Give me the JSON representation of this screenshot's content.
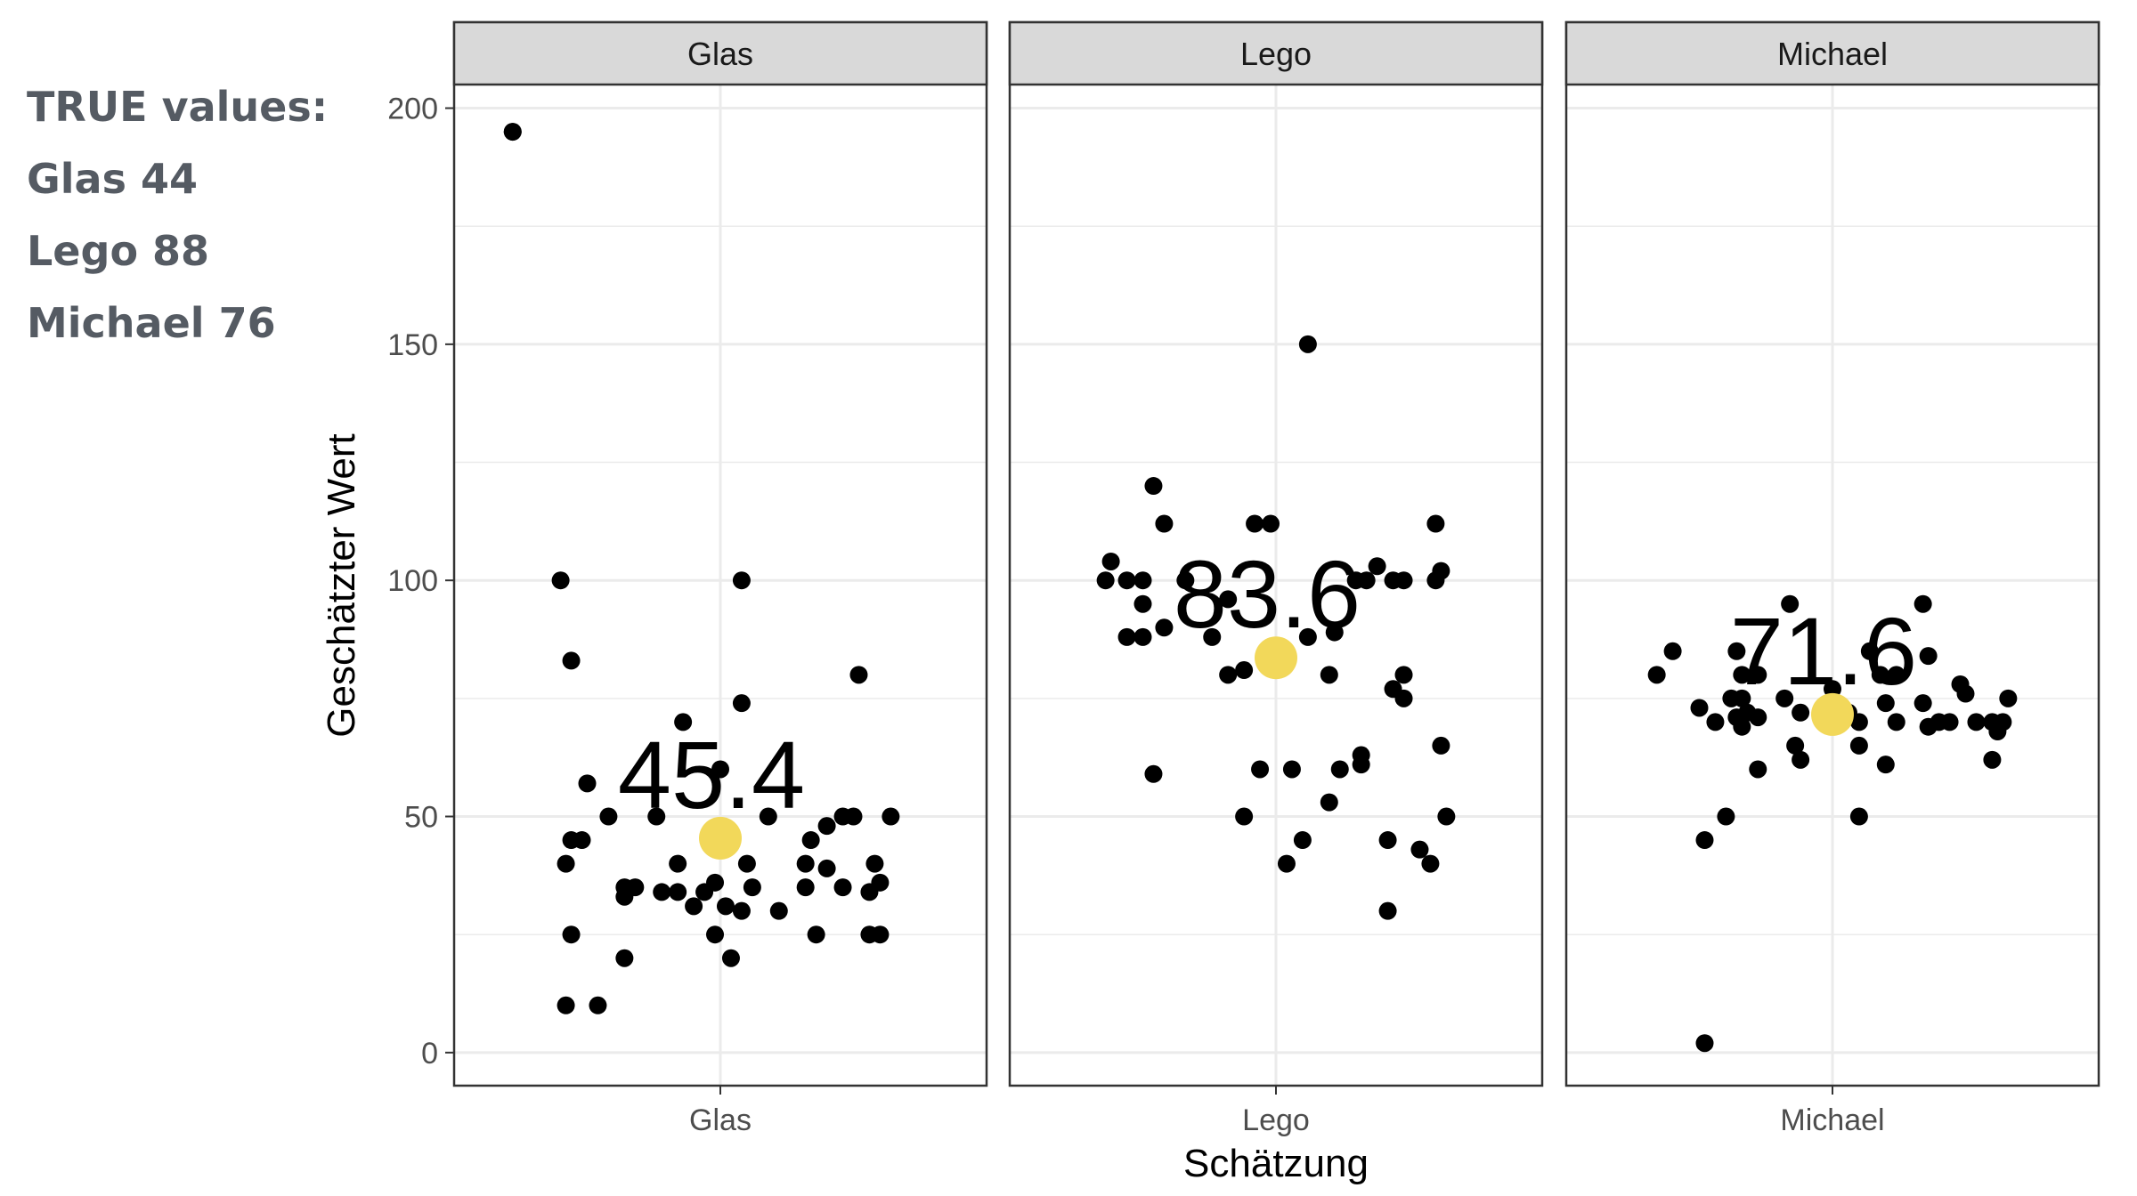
{
  "annotation": {
    "heading": "TRUE values:",
    "lines": [
      "Glas 44",
      "Lego 88",
      "Michael 76"
    ]
  },
  "chart_data": {
    "type": "scatter",
    "xlabel": "Schätzung",
    "ylabel": "Geschätzter Wert",
    "ylim": [
      -7,
      205
    ],
    "yticks": [
      0,
      50,
      100,
      150,
      200
    ],
    "grid": true,
    "colors": {
      "points": "#000000",
      "mean": "#f2d85a",
      "strip": "#d9d9d9",
      "grid": "#ebebeb"
    },
    "panels": [
      {
        "name": "Glas",
        "tick_label": "Glas",
        "mean": 45.4,
        "mean_label": "45.4",
        "points": [
          {
            "x": -0.39,
            "y": 195
          },
          {
            "x": -0.39,
            "y": 195
          },
          {
            "x": -0.3,
            "y": 100
          },
          {
            "x": 0.04,
            "y": 100
          },
          {
            "x": -0.28,
            "y": 83
          },
          {
            "x": 0.26,
            "y": 80
          },
          {
            "x": 0.04,
            "y": 74
          },
          {
            "x": -0.07,
            "y": 70
          },
          {
            "x": 0.0,
            "y": 60
          },
          {
            "x": -0.25,
            "y": 57
          },
          {
            "x": -0.21,
            "y": 50
          },
          {
            "x": -0.12,
            "y": 50
          },
          {
            "x": 0.09,
            "y": 50
          },
          {
            "x": 0.23,
            "y": 50
          },
          {
            "x": 0.25,
            "y": 50
          },
          {
            "x": 0.32,
            "y": 50
          },
          {
            "x": 0.2,
            "y": 48
          },
          {
            "x": -0.28,
            "y": 45
          },
          {
            "x": -0.26,
            "y": 45
          },
          {
            "x": 0.17,
            "y": 45
          },
          {
            "x": -0.29,
            "y": 40
          },
          {
            "x": -0.08,
            "y": 40
          },
          {
            "x": 0.05,
            "y": 40
          },
          {
            "x": 0.16,
            "y": 40
          },
          {
            "x": 0.2,
            "y": 39
          },
          {
            "x": 0.29,
            "y": 40
          },
          {
            "x": -0.18,
            "y": 35
          },
          {
            "x": -0.16,
            "y": 35
          },
          {
            "x": -0.11,
            "y": 34
          },
          {
            "x": -0.08,
            "y": 34
          },
          {
            "x": -0.03,
            "y": 34
          },
          {
            "x": -0.05,
            "y": 31
          },
          {
            "x": -0.01,
            "y": 36
          },
          {
            "x": 0.06,
            "y": 35
          },
          {
            "x": 0.16,
            "y": 35
          },
          {
            "x": 0.23,
            "y": 35
          },
          {
            "x": 0.28,
            "y": 34
          },
          {
            "x": 0.3,
            "y": 36
          },
          {
            "x": -0.18,
            "y": 33
          },
          {
            "x": 0.01,
            "y": 31
          },
          {
            "x": 0.04,
            "y": 30
          },
          {
            "x": 0.11,
            "y": 30
          },
          {
            "x": -0.28,
            "y": 25
          },
          {
            "x": -0.01,
            "y": 25
          },
          {
            "x": 0.18,
            "y": 25
          },
          {
            "x": 0.28,
            "y": 25
          },
          {
            "x": 0.3,
            "y": 25
          },
          {
            "x": -0.18,
            "y": 20
          },
          {
            "x": 0.02,
            "y": 20
          },
          {
            "x": -0.29,
            "y": 10
          },
          {
            "x": -0.23,
            "y": 10
          }
        ]
      },
      {
        "name": "Lego",
        "tick_label": "Lego",
        "mean": 83.6,
        "mean_label": "83.6",
        "points": [
          {
            "x": 0.06,
            "y": 150
          },
          {
            "x": -0.23,
            "y": 120
          },
          {
            "x": -0.21,
            "y": 112
          },
          {
            "x": -0.04,
            "y": 112
          },
          {
            "x": -0.01,
            "y": 112
          },
          {
            "x": 0.3,
            "y": 112
          },
          {
            "x": -0.31,
            "y": 104
          },
          {
            "x": 0.19,
            "y": 103
          },
          {
            "x": 0.31,
            "y": 102
          },
          {
            "x": -0.32,
            "y": 100
          },
          {
            "x": -0.28,
            "y": 100
          },
          {
            "x": -0.25,
            "y": 100
          },
          {
            "x": -0.17,
            "y": 100
          },
          {
            "x": 0.15,
            "y": 100
          },
          {
            "x": 0.17,
            "y": 100
          },
          {
            "x": 0.22,
            "y": 100
          },
          {
            "x": 0.24,
            "y": 100
          },
          {
            "x": 0.3,
            "y": 100
          },
          {
            "x": -0.09,
            "y": 96
          },
          {
            "x": -0.25,
            "y": 95
          },
          {
            "x": -0.21,
            "y": 90
          },
          {
            "x": -0.28,
            "y": 88
          },
          {
            "x": -0.25,
            "y": 88
          },
          {
            "x": -0.12,
            "y": 88
          },
          {
            "x": 0.06,
            "y": 88
          },
          {
            "x": 0.11,
            "y": 89
          },
          {
            "x": -0.09,
            "y": 80
          },
          {
            "x": -0.06,
            "y": 81
          },
          {
            "x": 0.1,
            "y": 80
          },
          {
            "x": 0.24,
            "y": 80
          },
          {
            "x": 0.22,
            "y": 77
          },
          {
            "x": 0.24,
            "y": 75
          },
          {
            "x": 0.31,
            "y": 65
          },
          {
            "x": 0.16,
            "y": 63
          },
          {
            "x": 0.16,
            "y": 61
          },
          {
            "x": -0.23,
            "y": 59
          },
          {
            "x": -0.03,
            "y": 60
          },
          {
            "x": 0.03,
            "y": 60
          },
          {
            "x": 0.12,
            "y": 60
          },
          {
            "x": 0.1,
            "y": 53
          },
          {
            "x": -0.06,
            "y": 50
          },
          {
            "x": 0.32,
            "y": 50
          },
          {
            "x": 0.05,
            "y": 45
          },
          {
            "x": 0.21,
            "y": 45
          },
          {
            "x": 0.27,
            "y": 43
          },
          {
            "x": 0.02,
            "y": 40
          },
          {
            "x": 0.29,
            "y": 40
          },
          {
            "x": 0.21,
            "y": 30
          }
        ]
      },
      {
        "name": "Michael",
        "tick_label": "Michael",
        "mean": 71.6,
        "mean_label": "71.6",
        "points": [
          {
            "x": -0.08,
            "y": 95
          },
          {
            "x": 0.17,
            "y": 95
          },
          {
            "x": -0.3,
            "y": 85
          },
          {
            "x": -0.18,
            "y": 85
          },
          {
            "x": 0.07,
            "y": 85
          },
          {
            "x": 0.18,
            "y": 84
          },
          {
            "x": -0.33,
            "y": 80
          },
          {
            "x": -0.14,
            "y": 80
          },
          {
            "x": -0.17,
            "y": 80
          },
          {
            "x": 0.09,
            "y": 80
          },
          {
            "x": 0.12,
            "y": 80
          },
          {
            "x": 0.24,
            "y": 78
          },
          {
            "x": 0.0,
            "y": 77
          },
          {
            "x": 0.25,
            "y": 76
          },
          {
            "x": -0.19,
            "y": 75
          },
          {
            "x": -0.17,
            "y": 75
          },
          {
            "x": -0.09,
            "y": 75
          },
          {
            "x": 0.1,
            "y": 74
          },
          {
            "x": 0.17,
            "y": 74
          },
          {
            "x": 0.33,
            "y": 75
          },
          {
            "x": -0.25,
            "y": 73
          },
          {
            "x": -0.16,
            "y": 72
          },
          {
            "x": -0.06,
            "y": 72
          },
          {
            "x": 0.03,
            "y": 72
          },
          {
            "x": -0.18,
            "y": 71
          },
          {
            "x": -0.14,
            "y": 71
          },
          {
            "x": 0.12,
            "y": 70
          },
          {
            "x": 0.2,
            "y": 70
          },
          {
            "x": 0.22,
            "y": 70
          },
          {
            "x": -0.22,
            "y": 70
          },
          {
            "x": -0.17,
            "y": 69
          },
          {
            "x": 0.05,
            "y": 70
          },
          {
            "x": 0.27,
            "y": 70
          },
          {
            "x": 0.3,
            "y": 70
          },
          {
            "x": 0.32,
            "y": 70
          },
          {
            "x": 0.18,
            "y": 69
          },
          {
            "x": 0.31,
            "y": 68
          },
          {
            "x": -0.07,
            "y": 65
          },
          {
            "x": 0.05,
            "y": 65
          },
          {
            "x": 0.3,
            "y": 62
          },
          {
            "x": -0.06,
            "y": 62
          },
          {
            "x": 0.1,
            "y": 61
          },
          {
            "x": -0.14,
            "y": 60
          },
          {
            "x": -0.2,
            "y": 50
          },
          {
            "x": 0.05,
            "y": 50
          },
          {
            "x": -0.24,
            "y": 45
          },
          {
            "x": -0.24,
            "y": 2
          }
        ]
      }
    ]
  }
}
